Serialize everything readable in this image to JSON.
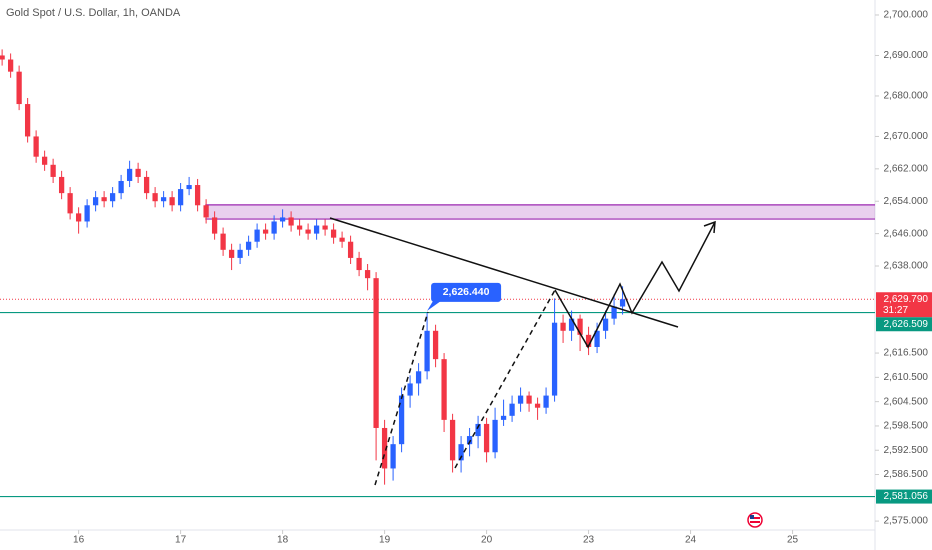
{
  "chart_data": {
    "type": "candlestick",
    "title": "Gold Spot / U.S. Dollar, 1h, OANDA",
    "up_color": "#2962ff",
    "down_color": "#f23645",
    "grid": false,
    "x": [
      0,
      2,
      4,
      6,
      8,
      10,
      12,
      14,
      16,
      18,
      20,
      22,
      24,
      26,
      28,
      30,
      32,
      34,
      36,
      38,
      40,
      42,
      44,
      46,
      48,
      50,
      52,
      54,
      56,
      58,
      60,
      62,
      64,
      66,
      68,
      70,
      72,
      74,
      76,
      78,
      80,
      82,
      84,
      86,
      88,
      90,
      92,
      94,
      96,
      98,
      100,
      102,
      104,
      106,
      108,
      110,
      112,
      114,
      116,
      118,
      120,
      122,
      124,
      126,
      128,
      130,
      132,
      134,
      136,
      138,
      140,
      142,
      144,
      146
    ],
    "open": [
      2690,
      2689,
      2686,
      2678,
      2670,
      2665,
      2663,
      2660,
      2656,
      2651,
      2649,
      2653,
      2655,
      2654,
      2656,
      2659,
      2662,
      2660,
      2656,
      2654,
      2655,
      2653,
      2657,
      2658,
      2653,
      2650,
      2646,
      2642,
      2640,
      2642,
      2644,
      2647,
      2646,
      2649,
      2650,
      2648,
      2647,
      2646,
      2648,
      2647,
      2645,
      2644,
      2640,
      2637,
      2635,
      2598,
      2588,
      2594,
      2606,
      2609,
      2612,
      2622,
      2615,
      2600,
      2590,
      2594,
      2596,
      2599,
      2592,
      2600,
      2601,
      2604,
      2606,
      2604,
      2603,
      2606,
      2624,
      2622,
      2625,
      2621,
      2618,
      2622,
      2625,
      2628
    ],
    "high": [
      2691.5,
      2690.5,
      2687.5,
      2679.5,
      2671.5,
      2666.5,
      2664.5,
      2661.5,
      2657.5,
      2652.5,
      2654.5,
      2656.5,
      2656.5,
      2657.5,
      2660.5,
      2664,
      2663.5,
      2661.5,
      2657.5,
      2656.5,
      2656.5,
      2658.5,
      2660,
      2659.5,
      2654.5,
      2651.5,
      2647.5,
      2643.5,
      2643.5,
      2645.5,
      2648.5,
      2648.5,
      2650.5,
      2652,
      2651.5,
      2649.5,
      2648.5,
      2649.5,
      2649.5,
      2648.5,
      2646.5,
      2645.5,
      2641.5,
      2638.5,
      2636.5,
      2600,
      2596,
      2608,
      2611,
      2614,
      2626.44,
      2623.5,
      2616.5,
      2601.5,
      2596,
      2598,
      2601,
      2600.5,
      2603,
      2605,
      2606,
      2608,
      2607,
      2605.5,
      2608,
      2630,
      2626,
      2627,
      2626,
      2623,
      2624,
      2627,
      2631,
      2633
    ],
    "low": [
      2687.5,
      2684.5,
      2676.5,
      2668.5,
      2663.5,
      2661.5,
      2658.5,
      2654.5,
      2649.5,
      2646,
      2647.5,
      2651.5,
      2652.5,
      2652.5,
      2654.5,
      2657.5,
      2658.5,
      2654.5,
      2652.5,
      2652.5,
      2651.5,
      2651.5,
      2655.5,
      2651.5,
      2648.5,
      2644.5,
      2640.5,
      2637,
      2638.5,
      2640.5,
      2642.5,
      2644.5,
      2644.5,
      2647.5,
      2646.5,
      2645.5,
      2644.5,
      2644.5,
      2645.5,
      2643.5,
      2642.5,
      2638.5,
      2635.5,
      2632,
      2590,
      2584,
      2585,
      2592,
      2603,
      2606,
      2610,
      2613,
      2597,
      2587,
      2587,
      2591,
      2593,
      2589.5,
      2590.5,
      2598.5,
      2599.5,
      2602,
      2602,
      2600,
      2601.5,
      2604.5,
      2619,
      2619.5,
      2617,
      2616,
      2616.5,
      2620,
      2623.5,
      2626
    ],
    "close": [
      2689,
      2686,
      2678,
      2670,
      2665,
      2663,
      2660,
      2656,
      2651,
      2649,
      2653,
      2655,
      2654,
      2656,
      2659,
      2662,
      2660,
      2656,
      2654,
      2655,
      2653,
      2657,
      2658,
      2653,
      2650,
      2646,
      2642,
      2640,
      2642,
      2644,
      2647,
      2646,
      2649,
      2650,
      2648,
      2647,
      2646,
      2648,
      2647,
      2645,
      2644,
      2640,
      2637,
      2635,
      2598,
      2588,
      2594,
      2606,
      2609,
      2612,
      2622,
      2615,
      2600,
      2590,
      2594,
      2596,
      2599,
      2592,
      2600,
      2601,
      2604,
      2606,
      2604,
      2603,
      2606,
      2624,
      2622,
      2625,
      2621,
      2618,
      2622,
      2625,
      2628,
      2629.79
    ],
    "xlim": [
      -0.5,
      205.4
    ],
    "ylim": [
      2572.8,
      2703.7
    ],
    "xticks": [
      {
        "value": 18,
        "label": "16"
      },
      {
        "value": 42,
        "label": "17"
      },
      {
        "value": 66,
        "label": "18"
      },
      {
        "value": 90,
        "label": "19"
      },
      {
        "value": 114,
        "label": "20"
      },
      {
        "value": 138,
        "label": "23"
      },
      {
        "value": 162,
        "label": "24"
      },
      {
        "value": 186,
        "label": "25"
      }
    ],
    "yticks": [
      {
        "value": 2700,
        "label": "2,700.000"
      },
      {
        "value": 2690,
        "label": "2,690.000"
      },
      {
        "value": 2680,
        "label": "2,680.000"
      },
      {
        "value": 2670,
        "label": "2,670.000"
      },
      {
        "value": 2662,
        "label": "2,662.000"
      },
      {
        "value": 2654,
        "label": "2,654.000"
      },
      {
        "value": 2646,
        "label": "2,646.000"
      },
      {
        "value": 2638,
        "label": "2,638.000"
      },
      {
        "value": 2616.5,
        "label": "2,616.500"
      },
      {
        "value": 2610.5,
        "label": "2,610.500"
      },
      {
        "value": 2604.5,
        "label": "2,604.500"
      },
      {
        "value": 2598.5,
        "label": "2,598.500"
      },
      {
        "value": 2592.5,
        "label": "2,592.500"
      },
      {
        "value": 2586.5,
        "label": "2,586.500"
      },
      {
        "value": 2575,
        "label": "2,575.000"
      }
    ],
    "levels": [
      {
        "value": 2626.509,
        "label": "2,626.509",
        "color": "#089981"
      },
      {
        "value": 2581.056,
        "label": "2,581.056",
        "color": "#089981"
      }
    ],
    "last_price": {
      "value": 2629.79,
      "label": "2,629.790",
      "countdown": "31:27",
      "color": "#f23645"
    },
    "annotation": {
      "value": 2626.44,
      "label": "2,626.440",
      "color": "#2962ff"
    },
    "zone": {
      "ylim": [
        2649.6,
        2653.1
      ],
      "x_start": 47.8,
      "color": "#9c27b0"
    }
  }
}
